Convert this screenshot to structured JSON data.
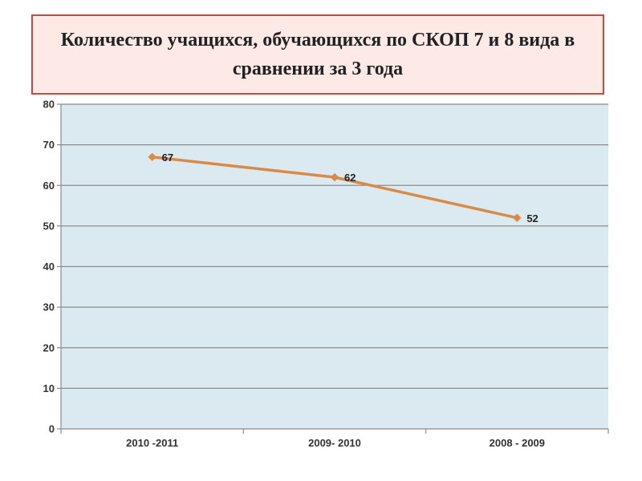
{
  "title": "Количество учащихся, обучающихся по СКОП 7 и 8 вида в сравнении за 3 года",
  "colors": {
    "title_bg": "#fde9e5",
    "title_border": "#c9473d",
    "plot_bg": "#dbe9f1",
    "line": "#d98a46",
    "grid": "#8c8c8c"
  },
  "chart_data": {
    "type": "line",
    "categories": [
      "2010 -2011",
      "2009- 2010",
      "2008 - 2009"
    ],
    "values": [
      67,
      62,
      52
    ],
    "data_labels": [
      "67",
      "62",
      "52"
    ],
    "ylim": [
      0,
      80
    ],
    "yticks": [
      "0",
      "10",
      "20",
      "30",
      "40",
      "50",
      "60",
      "70",
      "80"
    ],
    "grid": true,
    "legend": "none"
  }
}
